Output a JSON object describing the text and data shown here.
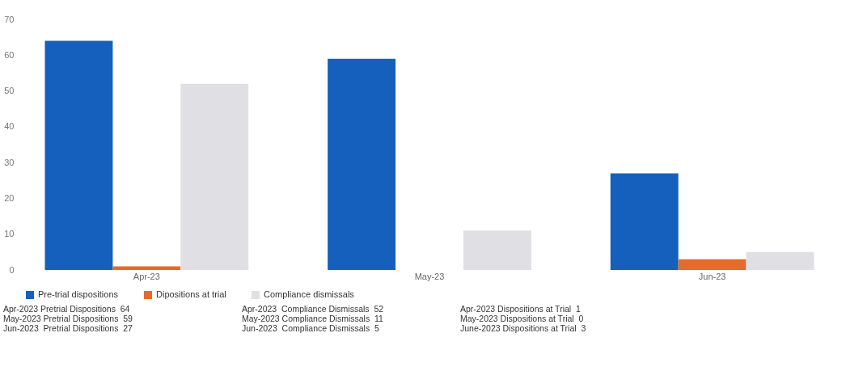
{
  "chart_data": {
    "type": "bar",
    "categories": [
      "Apr-23",
      "May-23",
      "Jun-23"
    ],
    "series": [
      {
        "name": "Pre-trial dispositions",
        "color": "#1560bd",
        "values": [
          64,
          59,
          27
        ]
      },
      {
        "name": "Dipositions at trial",
        "color": "#e46c2a",
        "values": [
          1,
          0,
          3
        ]
      },
      {
        "name": "Compliance dismissals",
        "color": "#e0e0e4",
        "values": [
          52,
          11,
          5
        ]
      }
    ],
    "ylim": [
      0,
      70
    ],
    "yticks": [
      0,
      10,
      20,
      30,
      40,
      50,
      60,
      70
    ],
    "grid": false,
    "legend": "bottom",
    "annotations": [
      "Apr-2023 Pretrial Dispositions  64",
      "May-2023 Pretrial Dispositions  59",
      "Jun-2023  Pretrial Dispositions  27",
      "Apr-2023  Compliance Dismissals  52",
      "May-2023 Compliance Dismissals  11",
      "Jun-2023  Compliance Dismissals  5",
      "Apr-2023 Dispositions at Trial  1",
      "May-2023 Dispositions at Trial  0",
      "June-2023 Dispositions at Trial  3"
    ]
  }
}
